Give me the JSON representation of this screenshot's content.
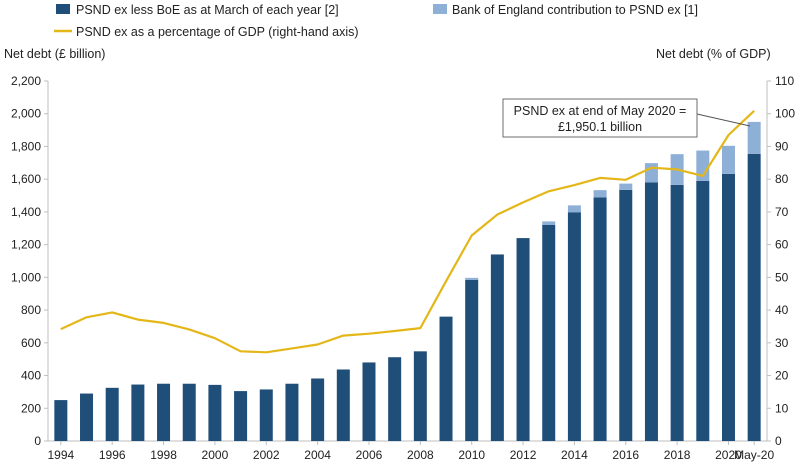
{
  "chart_data": {
    "type": "bar",
    "stacked": true,
    "categories": [
      "1994",
      "1995",
      "1996",
      "1997",
      "1998",
      "1999",
      "2000",
      "2001",
      "2002",
      "2003",
      "2004",
      "2005",
      "2006",
      "2007",
      "2008",
      "2009",
      "2010",
      "2011",
      "2012",
      "2013",
      "2014",
      "2015",
      "2016",
      "2017",
      "2018",
      "2019",
      "2020",
      "May-20"
    ],
    "x_tick_labels": [
      "1994",
      "",
      "1996",
      "",
      "1998",
      "",
      "2000",
      "",
      "2002",
      "",
      "2004",
      "",
      "2006",
      "",
      "2008",
      "",
      "2010",
      "",
      "2012",
      "",
      "2014",
      "",
      "2016",
      "",
      "2018",
      "",
      "2020",
      "May-20"
    ],
    "series": [
      {
        "name": "PSND ex less BoE as at March of each year [2]",
        "kind": "bar",
        "axis": "left",
        "color": "#1f4e79",
        "values": [
          250,
          290,
          325,
          345,
          350,
          350,
          343,
          305,
          315,
          350,
          382,
          437,
          480,
          512,
          548,
          760,
          985,
          1140,
          1240,
          1320,
          1398,
          1488,
          1535,
          1580,
          1565,
          1590,
          1632,
          1755
        ]
      },
      {
        "name": "Bank of England contribution to PSND ex [1]",
        "kind": "bar",
        "axis": "left",
        "color": "#8fb0d6",
        "values": [
          0,
          0,
          0,
          0,
          0,
          0,
          0,
          0,
          0,
          0,
          0,
          0,
          0,
          0,
          0,
          0,
          12,
          0,
          0,
          22,
          42,
          45,
          38,
          118,
          188,
          185,
          172,
          195
        ]
      },
      {
        "name": "PSND ex as a percentage of GDP (right-hand axis)",
        "kind": "line",
        "axis": "right",
        "color": "#e4b719",
        "values": [
          34.2,
          37.8,
          39.3,
          37.1,
          36.1,
          34.1,
          31.4,
          27.4,
          27.1,
          28.3,
          29.5,
          32.2,
          32.8,
          33.6,
          34.5,
          48.8,
          62.8,
          69.2,
          72.9,
          76.3,
          78.2,
          80.4,
          79.8,
          83.5,
          83.0,
          81.0,
          93.5,
          100.9
        ]
      }
    ],
    "ylabel": "Net debt (£ billion)",
    "y2label": "Net debt (% of GDP)",
    "ylim": [
      0,
      2200
    ],
    "y2lim": [
      0,
      110
    ],
    "yticks": [
      "0",
      "200",
      "400",
      "600",
      "800",
      "1,000",
      "1,200",
      "1,400",
      "1,600",
      "1,800",
      "2,000",
      "2,200"
    ],
    "y2ticks": [
      "0",
      "10",
      "20",
      "30",
      "40",
      "50",
      "60",
      "70",
      "80",
      "90",
      "100",
      "110"
    ],
    "annotation": {
      "line1": "PSND ex at end of May 2020 =",
      "line2": "£1,950.1 billion"
    },
    "legend_placement": "top",
    "grid": false
  }
}
